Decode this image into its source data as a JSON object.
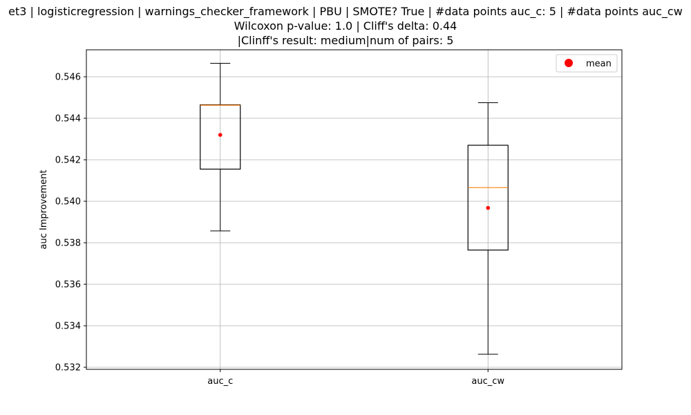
{
  "chart_data": {
    "type": "box",
    "title_lines": [
      "et3 | logisticregression | warnings_checker_framework | PBU | SMOTE? True | #data points auc_c: 5 | #data points auc_cw",
      "Wilcoxon p-value: 1.0 | Cliff's delta: 0.44",
      "|Clinff's result: medium|num of pairs: 5"
    ],
    "xlabel": "",
    "ylabel": "auc Improvement",
    "ylim": [
      0.5319,
      0.5473
    ],
    "yticks": [
      0.532,
      0.534,
      0.536,
      0.538,
      0.54,
      0.542,
      0.544,
      0.546
    ],
    "ytick_labels": [
      "0.532",
      "0.534",
      "0.536",
      "0.538",
      "0.540",
      "0.542",
      "0.544",
      "0.546"
    ],
    "categories": [
      "auc_c",
      "auc_cw"
    ],
    "boxes": [
      {
        "category": "auc_c",
        "whisker_low": 0.53857,
        "q1": 0.54155,
        "median": 0.54463,
        "q3": 0.54465,
        "whisker_high": 0.54665,
        "mean": 0.5432
      },
      {
        "category": "auc_cw",
        "whisker_low": 0.53263,
        "q1": 0.53765,
        "median": 0.54066,
        "q3": 0.5427,
        "whisker_high": 0.54475,
        "mean": 0.53968
      }
    ],
    "grid": true,
    "legend": {
      "position": "top-right",
      "entries": [
        {
          "label": "mean",
          "color": "#ff0000",
          "marker": "circle"
        }
      ]
    },
    "colors": {
      "box": "#000000",
      "median": "#ff7f0e",
      "mean": "#ff0000",
      "grid": "#b0b0b0"
    }
  }
}
